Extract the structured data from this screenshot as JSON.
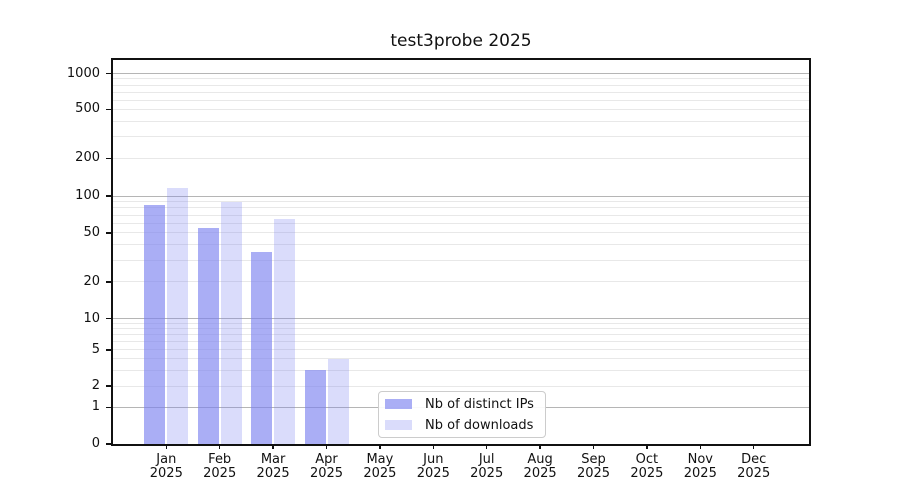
{
  "title": "test3probe 2025",
  "chart_data": {
    "type": "bar",
    "title": "test3probe 2025",
    "categories": [
      "Jan",
      "Feb",
      "Mar",
      "Apr",
      "May",
      "Jun",
      "Jul",
      "Aug",
      "Sep",
      "Oct",
      "Nov",
      "Dec"
    ],
    "category_year": "2025",
    "series": [
      {
        "name": "Nb of distinct IPs",
        "values": [
          85,
          55,
          35,
          3,
          0,
          0,
          0,
          0,
          0,
          0,
          0,
          0
        ]
      },
      {
        "name": "Nb of downloads",
        "values": [
          115,
          90,
          65,
          4,
          0,
          0,
          0,
          0,
          0,
          0,
          0,
          0
        ]
      }
    ],
    "yticks": [
      0,
      1,
      2,
      5,
      10,
      20,
      50,
      100,
      200,
      500,
      1000
    ],
    "yscale": "symlog",
    "ylim": [
      0,
      1150
    ],
    "xlabel": "",
    "ylabel": "",
    "grid": true,
    "legend": {
      "entries": [
        "Nb of distinct IPs",
        "Nb of downloads"
      ],
      "position": "lower center, inside axes"
    }
  },
  "colors": {
    "bar_dark": "rgba(122,128,240,0.64)",
    "bar_light": "rgba(122,128,240,0.28)",
    "grid_major": "#b5b5b5",
    "grid_minor": "#e8e8e8",
    "spine": "#111111",
    "background": "#ffffff"
  }
}
